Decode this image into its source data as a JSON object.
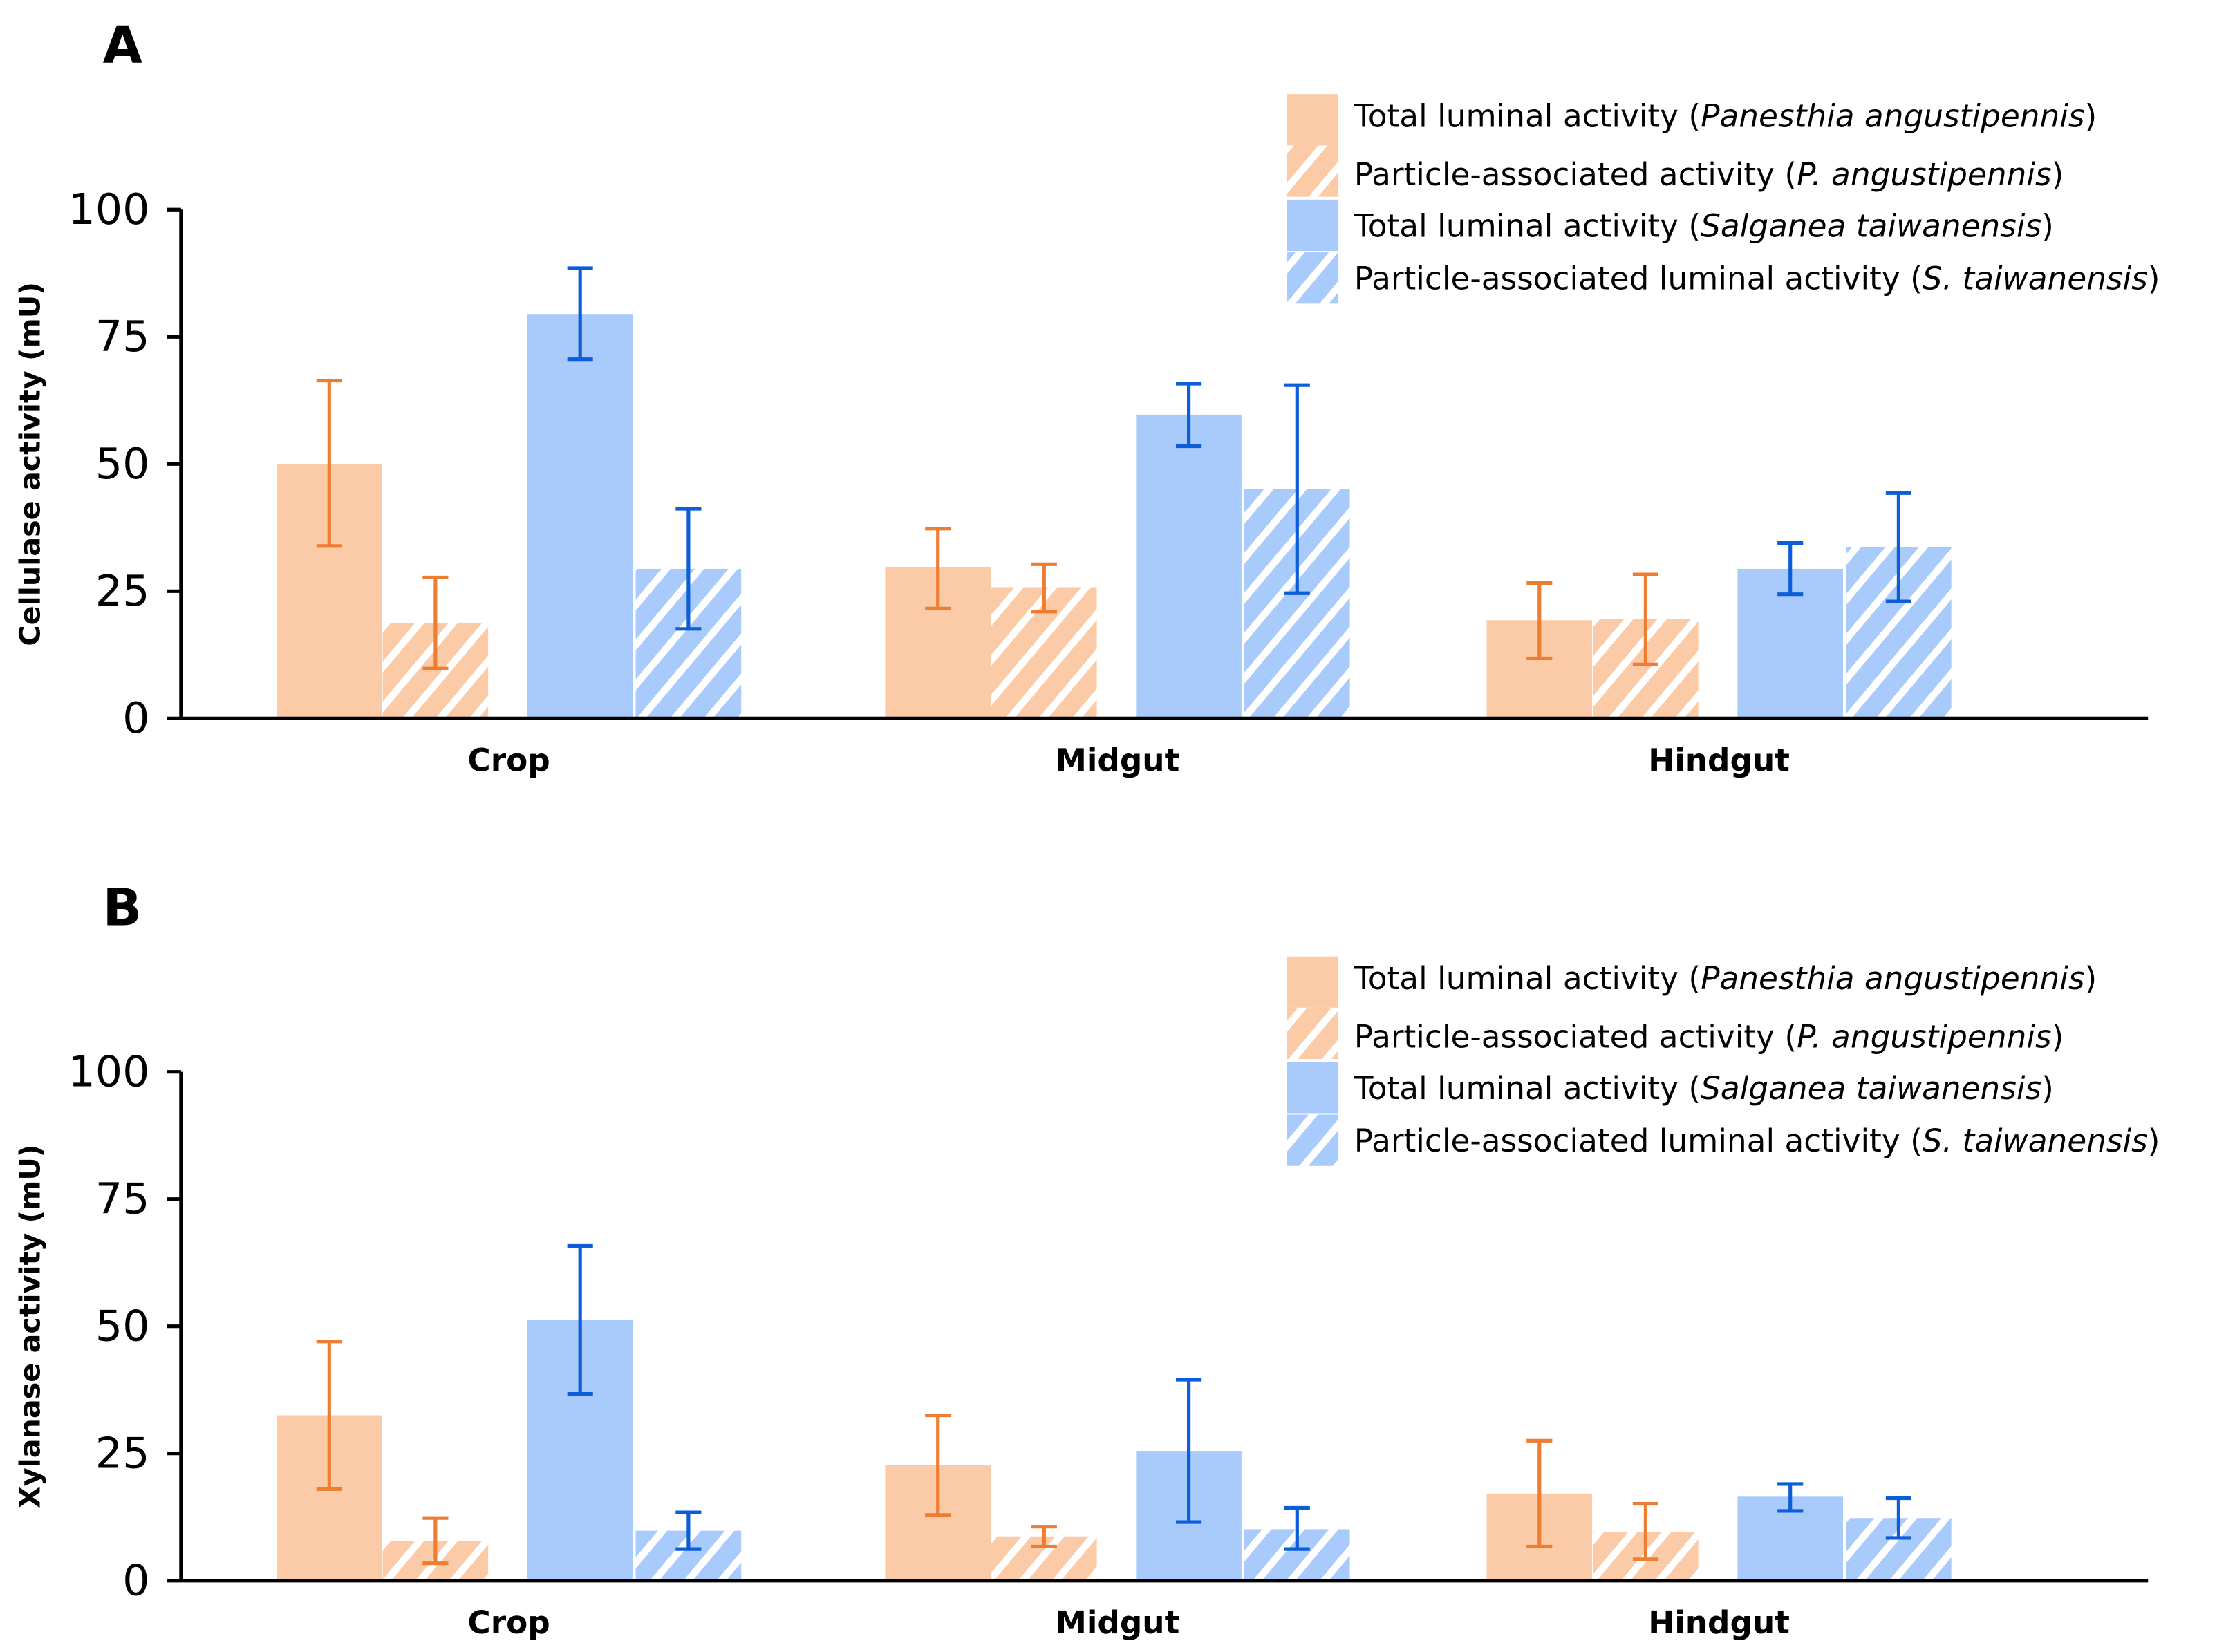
{
  "colors": {
    "panesthia_fill": "#FBCBA7",
    "salganea_fill": "#A9CBFB",
    "panesthia_error": "#ED7D31",
    "salganea_error": "#0B5ED7"
  },
  "chart_data": [
    {
      "type": "bar",
      "panel_label": "A",
      "ylabel": "Cellulase activity (mU)",
      "xlabel": "",
      "ylim": [
        0,
        100
      ],
      "yticks": [
        0,
        25,
        50,
        75,
        100
      ],
      "grid": false,
      "legend_position": "top-right",
      "categories": [
        "Crop",
        "Midgut",
        "Hindgut"
      ],
      "series": [
        {
          "name": "Total luminal activity (Panesthia angustipennis)",
          "legend": {
            "pre": "Total luminal activity (",
            "italic": "Panesthia angustipennis",
            "post": ")"
          },
          "color": "#FBCBA7",
          "hatched": false,
          "values": [
            50,
            29.7,
            19.3
          ],
          "error_low": [
            33.9,
            21.6,
            11.8
          ],
          "error_high": [
            66.4,
            37.3,
            26.6
          ]
        },
        {
          "name": "Particle-associated activity (P. angustipennis)",
          "legend": {
            "pre": "Particle-associated activity (",
            "italic": "P. angustipennis",
            "post": ")"
          },
          "color": "#FBCBA7",
          "hatched": true,
          "values": [
            18.8,
            25.8,
            19.6
          ],
          "error_low": [
            9.8,
            21,
            10.6
          ],
          "error_high": [
            27.7,
            30.3,
            28.3
          ]
        },
        {
          "name": "Total luminal activity (Salganea taiwanensis)",
          "legend": {
            "pre": "Total luminal activity (",
            "italic": "Salganea taiwanensis",
            "post": ")"
          },
          "color": "#A9CBFB",
          "hatched": false,
          "values": [
            79.5,
            59.7,
            29.4
          ],
          "error_low": [
            70.6,
            53.5,
            24.4
          ],
          "error_high": [
            88.5,
            65.8,
            34.5
          ]
        },
        {
          "name": "Particle-associated luminal activity (S. taiwanensis)",
          "legend": {
            "pre": "Particle-associated luminal activity (",
            "italic": "S. taiwanensis",
            "post": ")"
          },
          "color": "#A9CBFB",
          "hatched": true,
          "values": [
            29.4,
            45.1,
            33.6
          ],
          "error_low": [
            17.6,
            24.6,
            23
          ],
          "error_high": [
            41.2,
            65.5,
            44.3
          ]
        }
      ]
    },
    {
      "type": "bar",
      "panel_label": "B",
      "ylabel": "Xylanase activity (mU)",
      "xlabel": "",
      "ylim": [
        0,
        100
      ],
      "yticks": [
        0,
        25,
        50,
        75,
        100
      ],
      "grid": false,
      "legend_position": "top-right",
      "categories": [
        "Crop",
        "Midgut",
        "Hindgut"
      ],
      "series": [
        {
          "name": "Total luminal activity (Panesthia angustipennis)",
          "legend": {
            "pre": "Total luminal activity (",
            "italic": "Panesthia angustipennis",
            "post": ")"
          },
          "color": "#FBCBA7",
          "hatched": false,
          "values": [
            32.5,
            22.7,
            17.1
          ],
          "error_low": [
            18,
            12.9,
            6.7
          ],
          "error_high": [
            47,
            32.5,
            27.5
          ]
        },
        {
          "name": "Particle-associated activity (P. angustipennis)",
          "legend": {
            "pre": "Particle-associated activity (",
            "italic": "P. angustipennis",
            "post": ")"
          },
          "color": "#FBCBA7",
          "hatched": true,
          "values": [
            7.8,
            8.7,
            9.5
          ],
          "error_low": [
            3.4,
            6.7,
            4.2
          ],
          "error_high": [
            12.3,
            10.6,
            15.1
          ]
        },
        {
          "name": "Total luminal activity (Salganea taiwanensis)",
          "legend": {
            "pre": "Total luminal activity (",
            "italic": "Salganea taiwanensis",
            "post": ")"
          },
          "color": "#A9CBFB",
          "hatched": false,
          "values": [
            51.3,
            25.5,
            16.5
          ],
          "error_low": [
            36.7,
            11.5,
            13.7
          ],
          "error_high": [
            65.8,
            39.5,
            19
          ]
        },
        {
          "name": "Particle-associated luminal activity (S. taiwanensis)",
          "legend": {
            "pre": "Particle-associated luminal activity (",
            "italic": "S. taiwanensis",
            "post": ")"
          },
          "color": "#A9CBFB",
          "hatched": true,
          "values": [
            9.8,
            10.1,
            12.3
          ],
          "error_low": [
            6.2,
            6.2,
            8.4
          ],
          "error_high": [
            13.4,
            14.3,
            16.2
          ]
        }
      ]
    }
  ]
}
